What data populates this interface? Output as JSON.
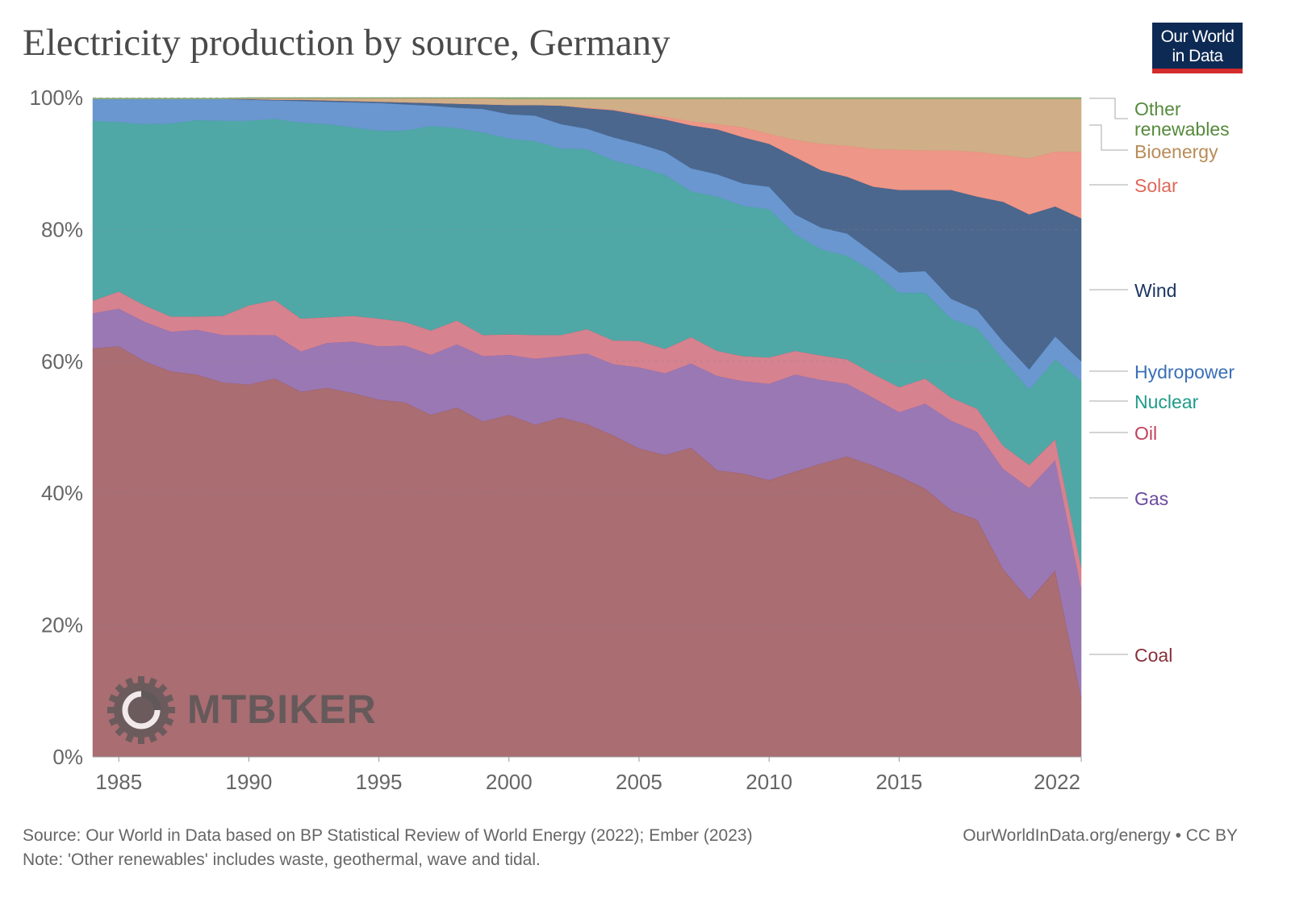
{
  "title": "Electricity production by source, Germany",
  "logo_text": [
    "Our World",
    "in Data"
  ],
  "footer": {
    "source": "Source: Our World in Data based on BP Statistical Review of World Energy (2022); Ember (2023)",
    "note": "Note: 'Other renewables' includes waste, geothermal, wave and tidal.",
    "url": "OurWorldInData.org/energy • CC BY"
  },
  "watermark": "MTBIKER",
  "chart_data": {
    "type": "area",
    "stacked": true,
    "normalized": true,
    "title": "Electricity production by source, Germany",
    "xlabel": "",
    "ylabel": "",
    "ylim": [
      0,
      100
    ],
    "y_ticks": [
      "0%",
      "20%",
      "40%",
      "60%",
      "80%",
      "100%"
    ],
    "x_ticks": [
      "1985",
      "1990",
      "1995",
      "2000",
      "2005",
      "2010",
      "2015",
      "2022"
    ],
    "x_tick_values": [
      1985,
      1990,
      1995,
      2000,
      2005,
      2010,
      2015,
      2022
    ],
    "grid": "horizontal-dashed",
    "legend": "right",
    "x": [
      1984,
      1985,
      1986,
      1987,
      1988,
      1989,
      1990,
      1991,
      1992,
      1993,
      1994,
      1995,
      1996,
      1997,
      1998,
      1999,
      2000,
      2001,
      2002,
      2003,
      2004,
      2005,
      2006,
      2007,
      2008,
      2009,
      2010,
      2011,
      2012,
      2013,
      2014,
      2015,
      2016,
      2017,
      2018,
      2019,
      2020,
      2021,
      2022
    ],
    "series": [
      {
        "name": "Coal",
        "color": "#a96d72",
        "label_color": "#883039",
        "values": [
          62,
          62.3,
          60,
          58.5,
          58,
          56.8,
          56.5,
          57.4,
          55.4,
          56,
          55.2,
          54.2,
          53.8,
          51.9,
          53,
          50.9,
          51.9,
          50.4,
          51.5,
          50.5,
          48.8,
          46.8,
          45.8,
          46.9,
          43.5,
          43,
          42,
          43.3,
          44.5,
          45.6,
          44.2,
          42.6,
          40.7,
          37.4,
          36,
          28.5,
          23.8,
          28.3,
          9
        ]
      },
      {
        "name": "Gas",
        "color": "#9a78b4",
        "label_color": "#6d4a9e",
        "values": [
          5.3,
          5.7,
          6,
          6,
          6.8,
          7.2,
          7.5,
          6.6,
          6.1,
          6.8,
          7.8,
          8.1,
          8.6,
          9.1,
          9.6,
          9.9,
          9.1,
          10,
          9.3,
          10.7,
          10.8,
          12.3,
          12.4,
          12.8,
          14.3,
          14,
          14.6,
          14.7,
          12.7,
          11,
          10.3,
          9.7,
          12.9,
          13.6,
          13.3,
          15.2,
          17,
          16.7,
          16.5
        ]
      },
      {
        "name": "Oil",
        "color": "#d6828f",
        "label_color": "#c2405d",
        "values": [
          1.9,
          2.6,
          2.5,
          2.3,
          2,
          2.9,
          4.5,
          5.3,
          5,
          3.9,
          3.9,
          4.2,
          3.6,
          3.7,
          3.6,
          3.2,
          3.1,
          3.6,
          3.2,
          3.7,
          3.6,
          4,
          3.7,
          4,
          3.8,
          3.8,
          4,
          3.6,
          3.7,
          3.7,
          3.6,
          3.8,
          3.8,
          3.5,
          3.5,
          3.5,
          3.5,
          3.2,
          3.3
        ]
      },
      {
        "name": "Nuclear",
        "color": "#4fa8a6",
        "label_color": "#1f9a8a",
        "values": [
          27.3,
          25.7,
          27.5,
          29.3,
          29.8,
          29.6,
          28,
          27.5,
          29.7,
          29.3,
          28.6,
          28.5,
          29,
          31,
          29.2,
          30.7,
          29.7,
          29.4,
          28.3,
          27.3,
          27.3,
          26.4,
          26.4,
          22.1,
          23.4,
          22.8,
          22.5,
          17.7,
          16.1,
          15.7,
          15.6,
          14.3,
          13,
          12,
          12.2,
          13.1,
          11.4,
          12.1,
          28.2
        ]
      },
      {
        "name": "Hydropower",
        "color": "#6a97cf",
        "label_color": "#3a6fb6",
        "values": [
          3.3,
          3.5,
          3.8,
          3.7,
          3.2,
          3.3,
          3.2,
          2.8,
          3.3,
          3.4,
          3.8,
          4.2,
          4,
          3.1,
          3.1,
          3.6,
          3.7,
          3.9,
          3.7,
          3.1,
          3.5,
          3.5,
          3.5,
          3.5,
          3.4,
          3.4,
          3.4,
          3,
          3.3,
          3.4,
          2.8,
          3.1,
          3.3,
          3,
          2.8,
          2.7,
          3.1,
          3.5,
          3
        ]
      },
      {
        "name": "Wind",
        "color": "#4b678e",
        "label_color": "#1c3560",
        "values": [
          0,
          0,
          0,
          0,
          0,
          0,
          0.1,
          0.1,
          0.2,
          0.2,
          0.2,
          0.2,
          0.3,
          0.4,
          0.6,
          0.7,
          1.4,
          1.6,
          2.8,
          3.1,
          4.1,
          4.4,
          4.9,
          6.5,
          6.8,
          7,
          6.5,
          8.7,
          8.7,
          8.6,
          10,
          12.5,
          12.3,
          16.5,
          17.2,
          21.2,
          23.5,
          19.7,
          21.7
        ]
      },
      {
        "name": "Solar",
        "color": "#ee9687",
        "label_color": "#e0675a",
        "values": [
          0,
          0,
          0,
          0,
          0,
          0,
          0,
          0,
          0,
          0,
          0,
          0,
          0,
          0,
          0,
          0,
          0,
          0,
          0,
          0.1,
          0.1,
          0.2,
          0.4,
          0.6,
          0.8,
          1.5,
          1.5,
          2.6,
          4,
          4.7,
          5.7,
          6.1,
          6,
          6,
          6.8,
          7.1,
          8.5,
          8.3,
          10.1
        ]
      },
      {
        "name": "Bioenergy",
        "color": "#d0ae87",
        "label_color": "#b88c57",
        "values": [
          0,
          0,
          0,
          0,
          0,
          0,
          0.1,
          0.2,
          0.2,
          0.3,
          0.4,
          0.5,
          0.6,
          0.7,
          0.8,
          0.9,
          0.9,
          0.9,
          1,
          1.3,
          1.6,
          2.2,
          2.7,
          3.4,
          3.8,
          4.3,
          5.3,
          6.2,
          6.8,
          7.1,
          7.6,
          7.7,
          7.8,
          7.8,
          8,
          8.5,
          9,
          8,
          8
        ]
      },
      {
        "name": "Other renewables",
        "color": "#8fb07a",
        "label_color": "#568a3c",
        "values": [
          0.1,
          0.1,
          0.1,
          0.1,
          0.1,
          0.1,
          0.1,
          0.1,
          0.1,
          0.1,
          0.1,
          0.1,
          0.1,
          0.1,
          0.1,
          0.1,
          0.2,
          0.2,
          0.2,
          0.2,
          0.2,
          0.2,
          0.2,
          0.2,
          0.2,
          0.2,
          0.2,
          0.2,
          0.2,
          0.2,
          0.2,
          0.2,
          0.2,
          0.2,
          0.2,
          0.2,
          0.2,
          0.2,
          0.2
        ]
      }
    ]
  }
}
